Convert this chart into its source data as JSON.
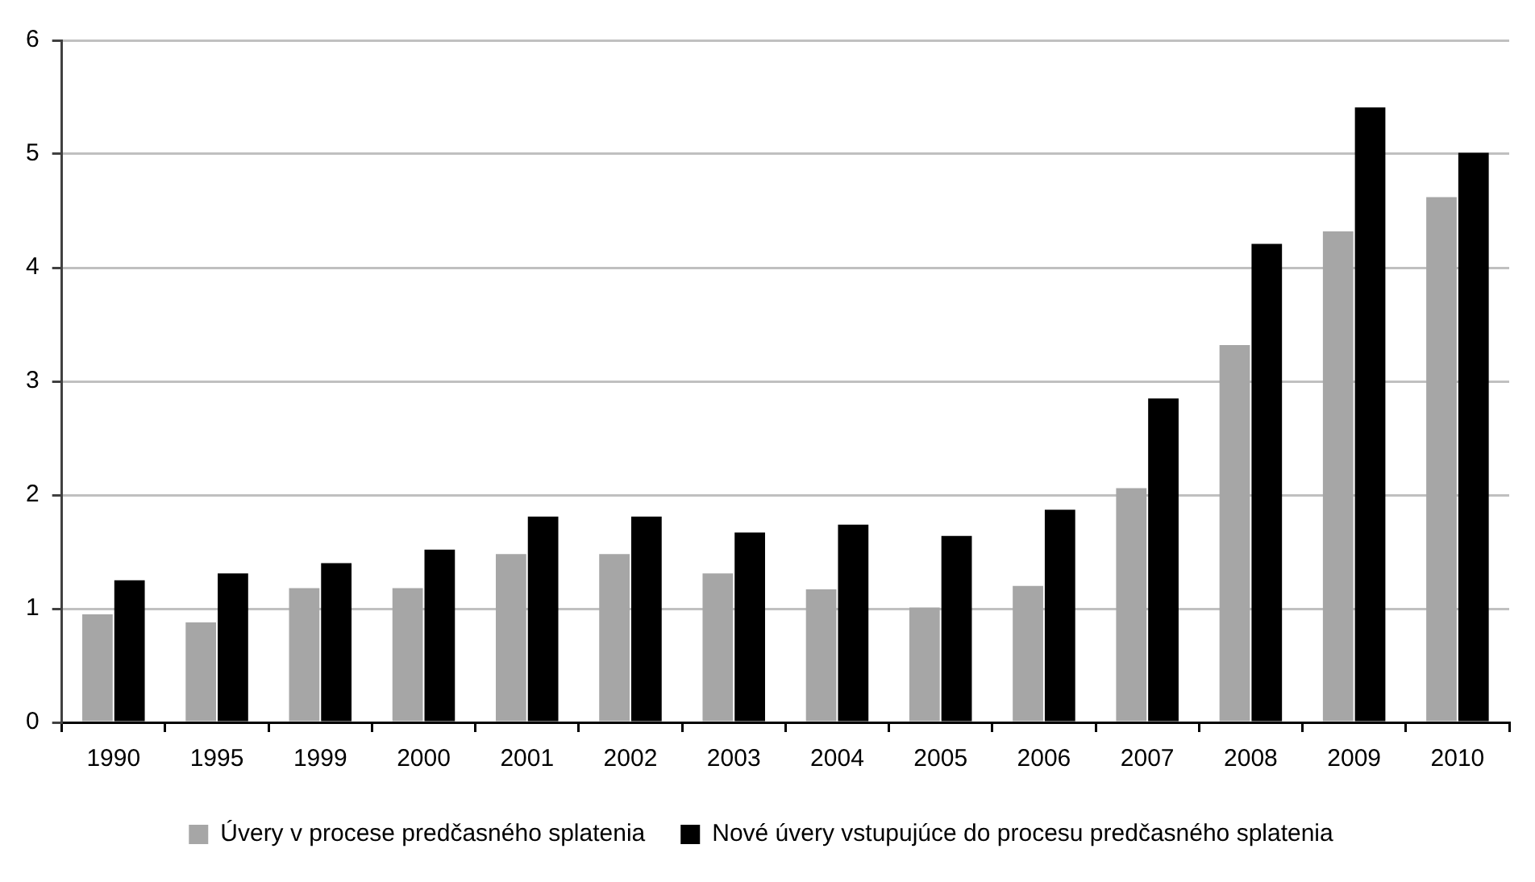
{
  "chart_data": {
    "type": "bar",
    "categories": [
      "1990",
      "1995",
      "1999",
      "2000",
      "2001",
      "2002",
      "2003",
      "2004",
      "2005",
      "2006",
      "2007",
      "2008",
      "2009",
      "2010"
    ],
    "series": [
      {
        "name": "Úvery v procese predčasného splatenia",
        "color": "#a6a6a6",
        "values": [
          0.95,
          0.88,
          1.18,
          1.18,
          1.48,
          1.48,
          1.31,
          1.17,
          1.01,
          1.2,
          2.06,
          3.32,
          4.32,
          4.62
        ]
      },
      {
        "name": "Nové úvery vstupujúce do procesu predčasného splatenia",
        "color": "#000000",
        "values": [
          1.25,
          1.31,
          1.4,
          1.52,
          1.81,
          1.81,
          1.67,
          1.74,
          1.64,
          1.87,
          2.85,
          4.21,
          5.41,
          5.01
        ]
      }
    ],
    "ylim": [
      0,
      6
    ],
    "yticks": [
      0,
      1,
      2,
      3,
      4,
      5,
      6
    ],
    "grid": "y",
    "legend": "bottom"
  }
}
